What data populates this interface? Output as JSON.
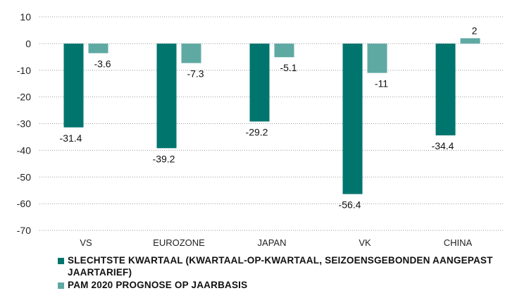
{
  "chart_data": {
    "type": "bar",
    "categories": [
      "VS",
      "EUROZONE",
      "JAPAN",
      "VK",
      "CHINA"
    ],
    "series": [
      {
        "name": "SLECHTSTE KWARTAAL (KWARTAAL-OP-KWARTAAL, SEIZOENSGEBONDEN AANGEPAST JAARTARIEF)",
        "values": [
          -31.4,
          -39.2,
          -29.2,
          -56.4,
          -34.4
        ],
        "color": "#00756e"
      },
      {
        "name": "PAM 2020 PROGNOSE OP JAARBASIS",
        "values": [
          -3.6,
          -7.3,
          -5.1,
          -11,
          2
        ],
        "color": "#5fa9a3"
      }
    ],
    "yticks": [
      10,
      0,
      -10,
      -20,
      -30,
      -40,
      -50,
      -60,
      -70
    ],
    "ylim": [
      -70,
      10
    ],
    "grid": true,
    "legend": "bottom-left"
  }
}
